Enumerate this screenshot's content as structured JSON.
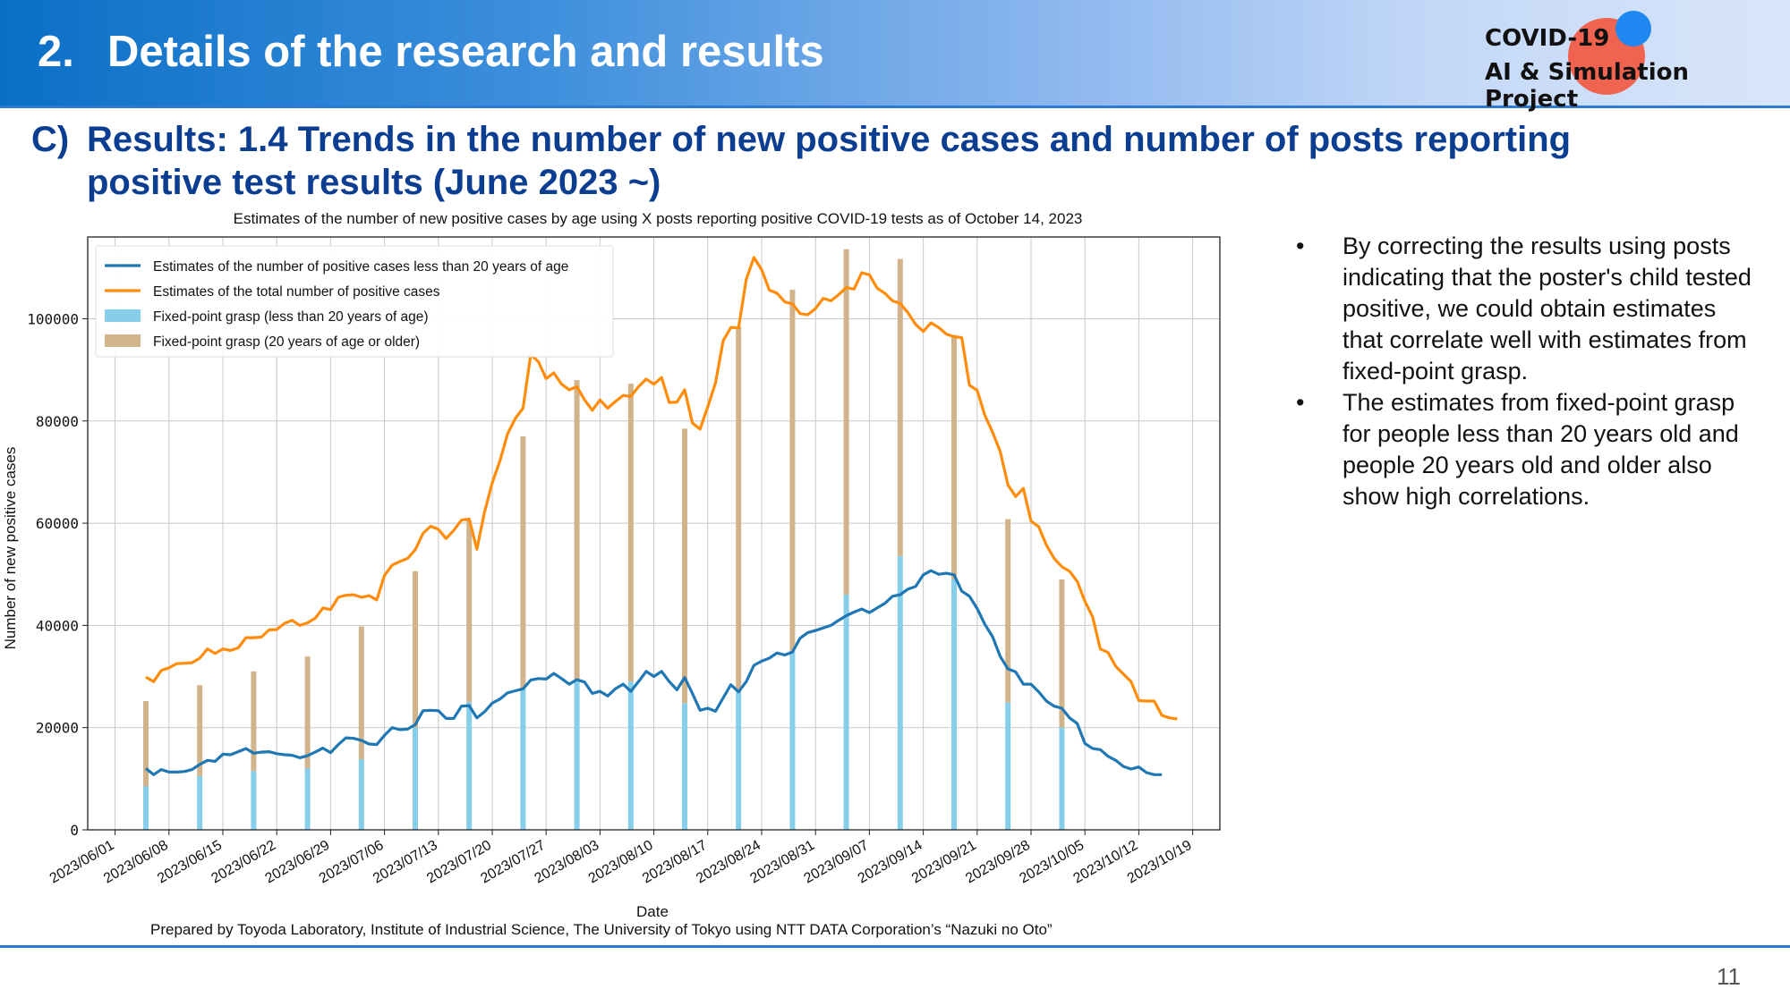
{
  "header": {
    "number": "2.",
    "title": "Details of the research and results",
    "logo_line1": "COVID-19",
    "logo_line2": "AI & Simulation Project"
  },
  "section": {
    "label": "C)",
    "title_line1": "Results: 1.4 Trends in the number of new positive cases and number of posts reporting",
    "title_line2": "positive test results (June 2023 ~)"
  },
  "chart_data": {
    "type": "line",
    "title": "Estimates of the number of new positive cases by age using X posts reporting positive COVID-19 tests as of October 14, 2023",
    "xlabel": "Date",
    "ylabel": "Number of new positive cases",
    "ylim": [
      0,
      116000
    ],
    "yticks": [
      0,
      20000,
      40000,
      60000,
      80000,
      100000
    ],
    "ytick_labels": [
      "0",
      "20000",
      "40000",
      "60000",
      "80000",
      "100000"
    ],
    "xtick_labels": [
      "2023/06/01",
      "2023/06/08",
      "2023/06/15",
      "2023/06/22",
      "2023/06/29",
      "2023/07/06",
      "2023/07/13",
      "2023/07/20",
      "2023/07/27",
      "2023/08/03",
      "2023/08/10",
      "2023/08/17",
      "2023/08/24",
      "2023/08/31",
      "2023/09/07",
      "2023/09/14",
      "2023/09/21",
      "2023/09/28",
      "2023/10/05",
      "2023/10/12",
      "2023/10/19"
    ],
    "grid": true,
    "legend": "top-left",
    "colors": {
      "under20": "#1f77b4",
      "total": "#ff8c0a",
      "bar_under20": "#87ceeb",
      "bar_over20": "#d2b48c"
    },
    "series": [
      {
        "name": "Estimates of the number of positive cases less than 20 years of age",
        "start_date": "2023/06/05",
        "values": [
          12000,
          10800,
          11800,
          11300,
          11300,
          11400,
          11800,
          12800,
          13600,
          13400,
          14800,
          14700,
          15300,
          15900,
          15000,
          15200,
          15300,
          14900,
          14700,
          14600,
          14100,
          14500,
          15200,
          16000,
          15100,
          16700,
          18000,
          17900,
          17500,
          16800,
          16700,
          18500,
          20000,
          19600,
          19700,
          20600,
          23300,
          23400,
          23300,
          21800,
          21800,
          24200,
          24300,
          21900,
          23100,
          24800,
          25600,
          26800,
          27200,
          27600,
          29300,
          29600,
          29500,
          30600,
          29600,
          28500,
          29400,
          28900,
          26700,
          27100,
          26200,
          27600,
          28500,
          27100,
          29000,
          31000,
          30000,
          31000,
          29000,
          27400,
          29800,
          26700,
          23400,
          23800,
          23200,
          25800,
          28400,
          27000,
          29000,
          32200,
          33000,
          33600,
          34600,
          34200,
          34800,
          37500,
          38600,
          39000,
          39500,
          40000,
          41000,
          41900,
          42600,
          43200,
          42500,
          43400,
          44300,
          45700,
          46000,
          47100,
          47600,
          49900,
          50700,
          50000,
          50200,
          49900,
          46700,
          45700,
          43300,
          40200,
          37800,
          33900,
          31500,
          30900,
          28500,
          28500,
          27000,
          25200,
          24200,
          23800,
          21900,
          20800,
          16900,
          15900,
          15700,
          14400,
          13600,
          12400,
          11900,
          12300,
          11200,
          10800,
          10800
        ]
      },
      {
        "name": "Estimates of the total number of positive cases",
        "start_date": "2023/06/05",
        "values": [
          29900,
          29000,
          31200,
          31700,
          32500,
          32600,
          32700,
          33600,
          35400,
          34500,
          35400,
          35100,
          35600,
          37600,
          37600,
          37700,
          39100,
          39200,
          40400,
          41000,
          40000,
          40500,
          41400,
          43400,
          43100,
          45500,
          45900,
          46000,
          45500,
          45800,
          45000,
          49800,
          51800,
          52500,
          53100,
          54800,
          58000,
          59400,
          58800,
          57000,
          58600,
          60600,
          60800,
          54900,
          62200,
          67900,
          72200,
          77500,
          80500,
          82500,
          93000,
          91600,
          88300,
          89400,
          87200,
          86100,
          86700,
          84100,
          82100,
          84100,
          82500,
          83800,
          85000,
          84800,
          86700,
          88200,
          87200,
          88500,
          83600,
          83700,
          86100,
          79600,
          78400,
          82800,
          87400,
          95700,
          98300,
          98200,
          107700,
          112000,
          109600,
          105600,
          105000,
          103300,
          102900,
          101000,
          100800,
          102000,
          104000,
          103500,
          104700,
          106100,
          105800,
          109000,
          108600,
          106000,
          105000,
          103500,
          103000,
          101200,
          98900,
          97500,
          99200,
          98300,
          97000,
          96500,
          96300,
          87000,
          86000,
          81100,
          77800,
          74000,
          67500,
          65200,
          66800,
          60400,
          59300,
          55700,
          53100,
          51500,
          50600,
          48600,
          44700,
          41700,
          35400,
          34700,
          32000,
          30500,
          29000,
          25300,
          25200,
          25200,
          22400,
          21900,
          21700
        ]
      }
    ],
    "bars": {
      "name_under20": "Fixed-point grasp (less than 20 years of age)",
      "name_over20": "Fixed-point grasp (20 years of age or older)",
      "dates": [
        "2023/06/05",
        "2023/06/12",
        "2023/06/19",
        "2023/06/26",
        "2023/07/03",
        "2023/07/10",
        "2023/07/17",
        "2023/07/24",
        "2023/07/31",
        "2023/08/07",
        "2023/08/14",
        "2023/08/21",
        "2023/08/28",
        "2023/09/04",
        "2023/09/11",
        "2023/09/18",
        "2023/09/25",
        "2023/10/02"
      ],
      "under20": [
        8500,
        10500,
        11500,
        12000,
        13800,
        20000,
        25000,
        27500,
        29000,
        29000,
        24800,
        27000,
        35000,
        46000,
        53500,
        49000,
        24900,
        20000
      ],
      "total": [
        25200,
        28300,
        31000,
        33900,
        39800,
        50600,
        60500,
        77000,
        88000,
        87300,
        78500,
        98500,
        105700,
        113600,
        111700,
        96800,
        60800,
        49000
      ]
    }
  },
  "bullets": [
    "By correcting the results using posts indicating that the poster's child tested positive, we could obtain estimates that correlate well with estimates from fixed-point grasp.",
    "The estimates from fixed-point grasp for people less than 20 years old and people 20 years old and older also show high correlations."
  ],
  "credit": "Prepared by Toyoda Laboratory, Institute of Industrial Science, The University of Tokyo using NTT DATA Corporation’s “Nazuki no Oto”",
  "page_number": "11"
}
